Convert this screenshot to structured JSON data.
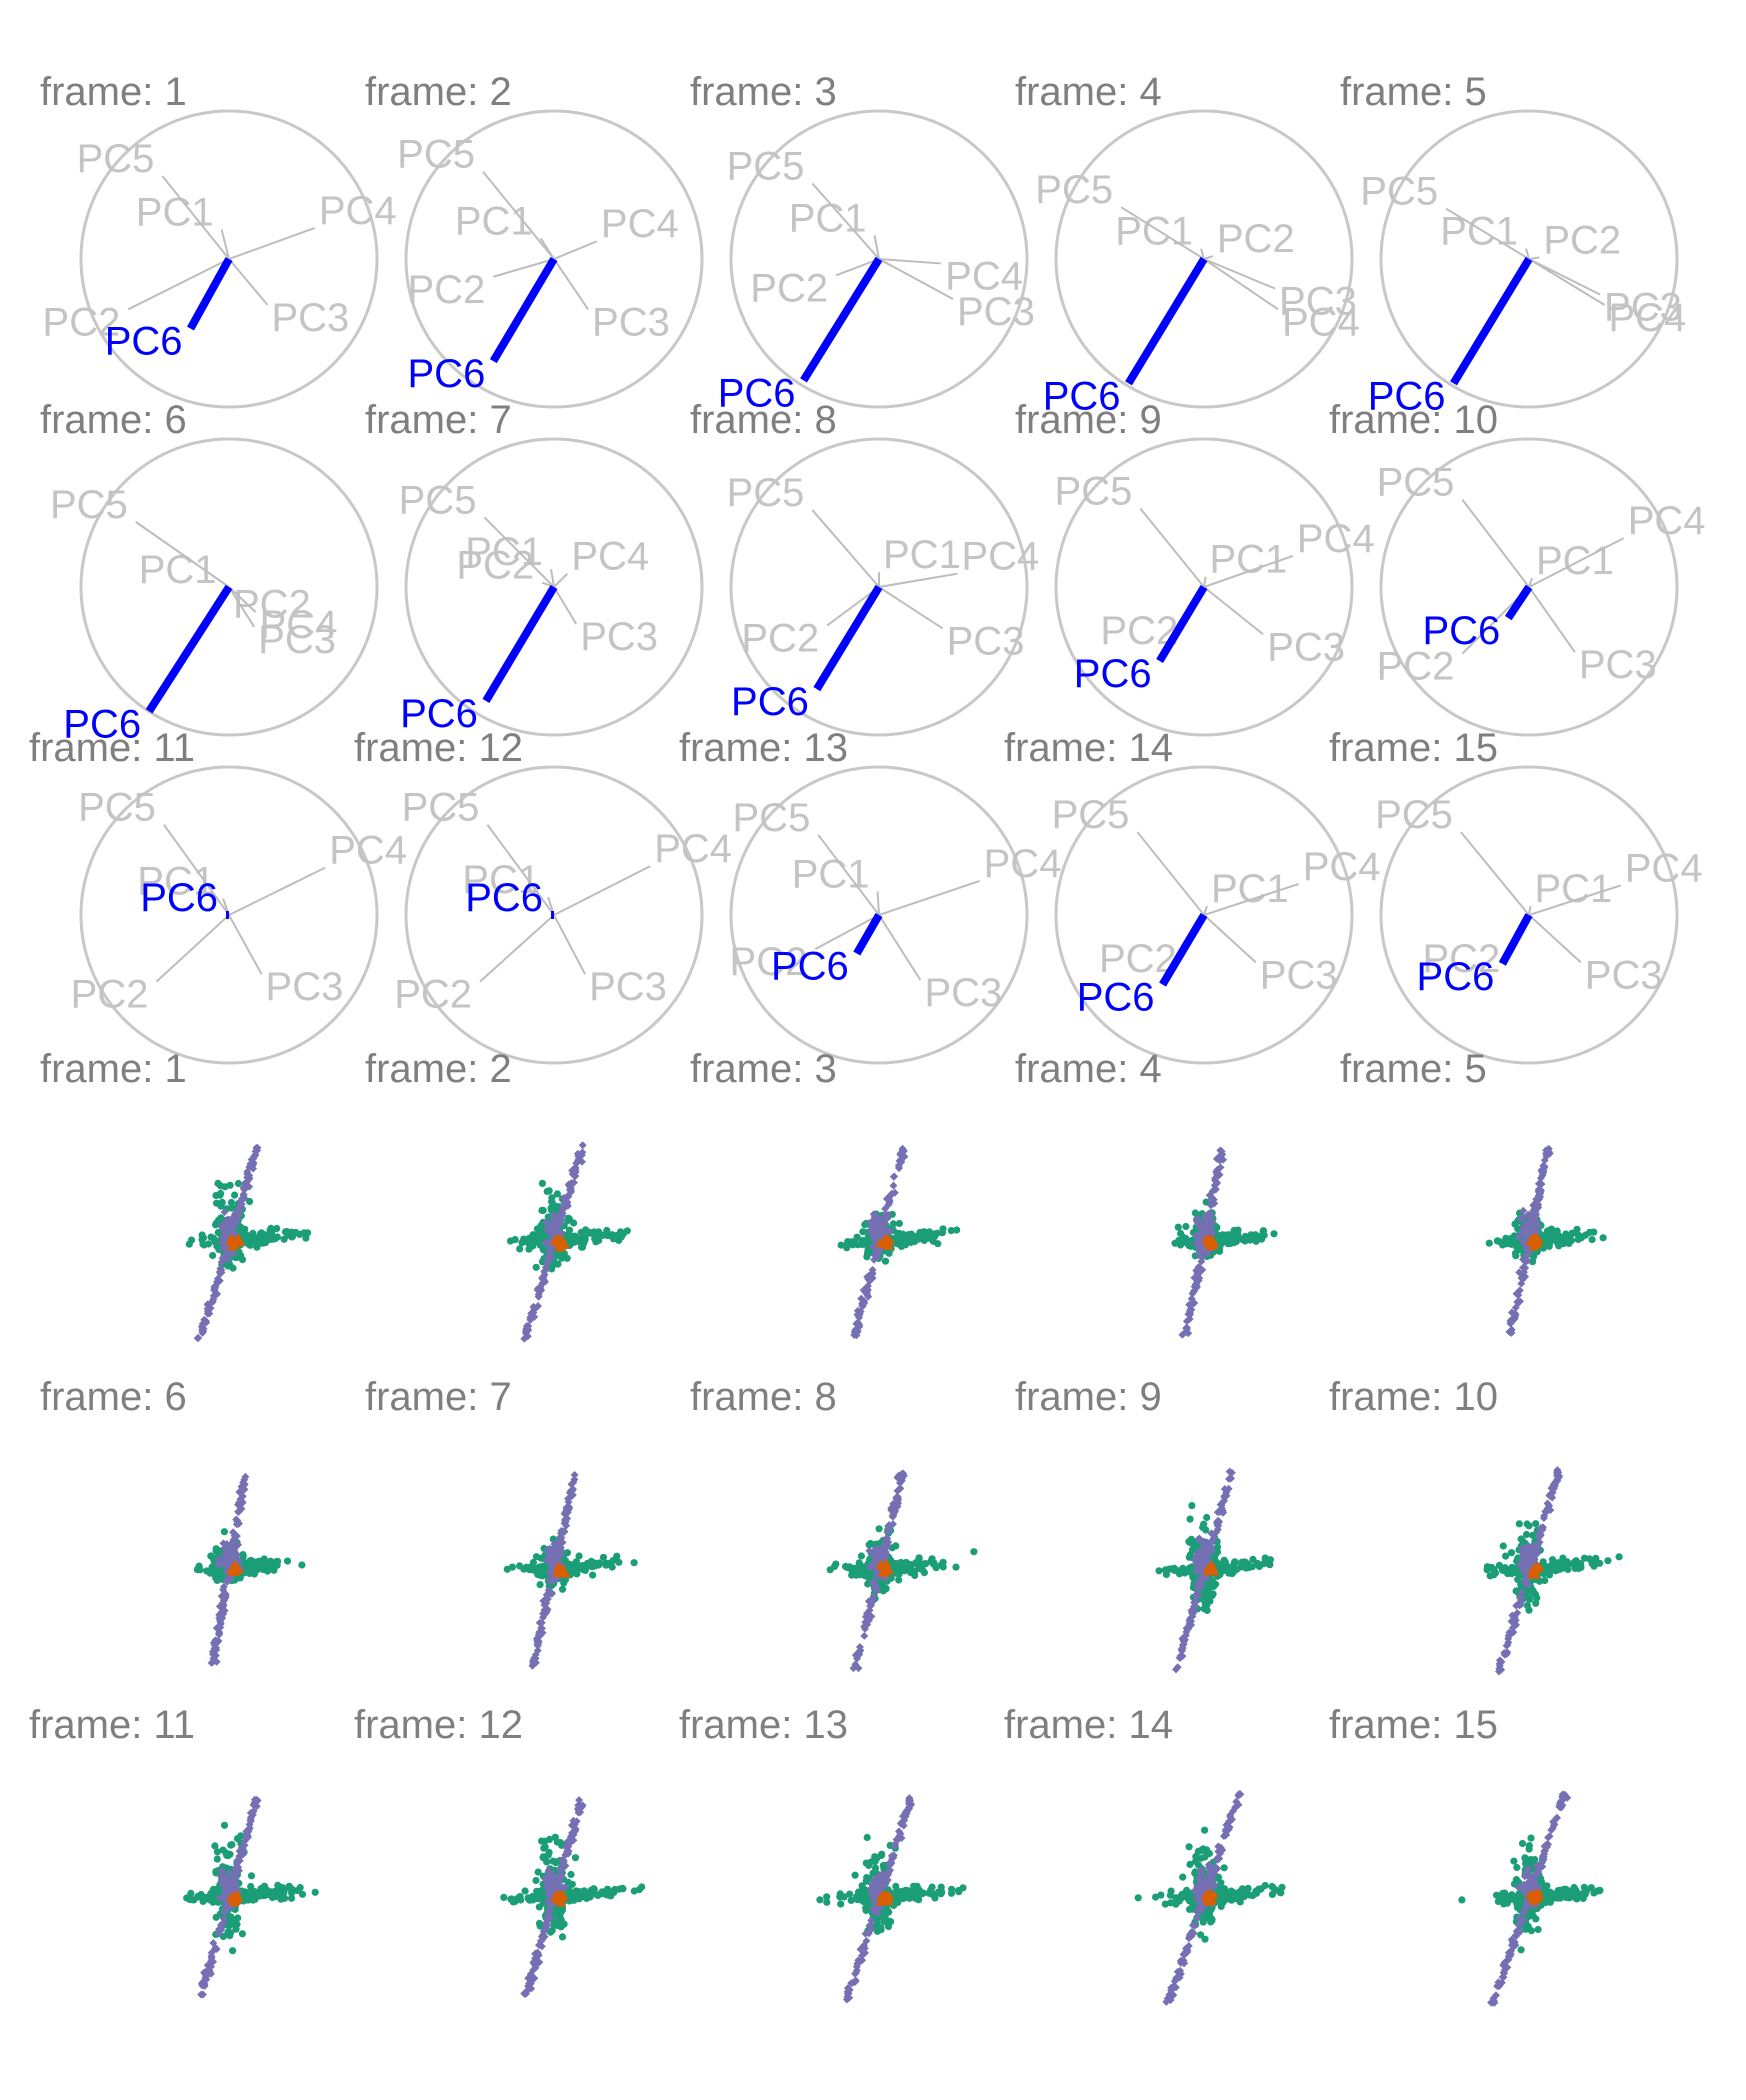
{
  "colors": {
    "frame_label": "#7f7f7f",
    "circle": "#c8c8c8",
    "axis": "#bdbdbd",
    "axis_label": "#c4c4c4",
    "highlight": "#0000ff",
    "groups": [
      "#1b9e77",
      "#d95f02",
      "#7570b3"
    ]
  },
  "chart_data": [
    {
      "type": "tour-axes",
      "description_source": "projection axes of the principal components for each tour frame",
      "frame_prefix": "frame: ",
      "highlight_axis": "PC6",
      "frames": [
        {
          "frame": 1,
          "axes": [
            {
              "label": "PC1",
              "x": -0.05,
              "y": 0.2
            },
            {
              "label": "PC2",
              "x": -0.68,
              "y": -0.34
            },
            {
              "label": "PC3",
              "x": 0.26,
              "y": -0.31
            },
            {
              "label": "PC4",
              "x": 0.58,
              "y": 0.21
            },
            {
              "label": "PC5",
              "x": -0.45,
              "y": 0.56
            },
            {
              "label": "PC6",
              "x": -0.26,
              "y": -0.47
            }
          ]
        },
        {
          "frame": 2,
          "axes": [
            {
              "label": "PC1",
              "x": -0.09,
              "y": 0.14
            },
            {
              "label": "PC2",
              "x": -0.41,
              "y": -0.12
            },
            {
              "label": "PC3",
              "x": 0.23,
              "y": -0.34
            },
            {
              "label": "PC4",
              "x": 0.29,
              "y": 0.12
            },
            {
              "label": "PC5",
              "x": -0.48,
              "y": 0.59
            },
            {
              "label": "PC6",
              "x": -0.41,
              "y": -0.69
            }
          ]
        },
        {
          "frame": 3,
          "axes": [
            {
              "label": "PC1",
              "x": -0.03,
              "y": 0.16
            },
            {
              "label": "PC2",
              "x": -0.29,
              "y": -0.11
            },
            {
              "label": "PC3",
              "x": 0.5,
              "y": -0.27
            },
            {
              "label": "PC4",
              "x": 0.42,
              "y": -0.03
            },
            {
              "label": "PC5",
              "x": -0.45,
              "y": 0.51
            },
            {
              "label": "PC6",
              "x": -0.51,
              "y": -0.82
            }
          ]
        },
        {
          "frame": 4,
          "axes": [
            {
              "label": "PC1",
              "x": -0.02,
              "y": 0.07
            },
            {
              "label": "PC2",
              "x": 0.06,
              "y": 0.02
            },
            {
              "label": "PC3",
              "x": 0.48,
              "y": -0.2
            },
            {
              "label": "PC4",
              "x": 0.5,
              "y": -0.34
            },
            {
              "label": "PC5",
              "x": -0.56,
              "y": 0.35
            },
            {
              "label": "PC6",
              "x": -0.51,
              "y": -0.84
            }
          ]
        },
        {
          "frame": 5,
          "axes": [
            {
              "label": "PC1",
              "x": -0.02,
              "y": 0.07
            },
            {
              "label": "PC2",
              "x": 0.07,
              "y": 0.01
            },
            {
              "label": "PC3",
              "x": 0.48,
              "y": -0.24
            },
            {
              "label": "PC4",
              "x": 0.51,
              "y": -0.31
            },
            {
              "label": "PC5",
              "x": -0.56,
              "y": 0.34
            },
            {
              "label": "PC6",
              "x": -0.51,
              "y": -0.84
            }
          ]
        },
        {
          "frame": 6,
          "axes": [
            {
              "label": "PC1",
              "x": -0.03,
              "y": 0.0
            },
            {
              "label": "PC2",
              "x": 0.0,
              "y": -0.03
            },
            {
              "label": "PC3",
              "x": 0.17,
              "y": -0.27
            },
            {
              "label": "PC4",
              "x": 0.18,
              "y": -0.17
            },
            {
              "label": "PC5",
              "x": -0.63,
              "y": 0.44
            },
            {
              "label": "PC6",
              "x": -0.54,
              "y": -0.84
            }
          ]
        },
        {
          "frame": 7,
          "axes": [
            {
              "label": "PC1",
              "x": -0.02,
              "y": 0.12
            },
            {
              "label": "PC2",
              "x": -0.08,
              "y": 0.03
            },
            {
              "label": "PC3",
              "x": 0.15,
              "y": -0.25
            },
            {
              "label": "PC4",
              "x": 0.09,
              "y": 0.09
            },
            {
              "label": "PC5",
              "x": -0.47,
              "y": 0.47
            },
            {
              "label": "PC6",
              "x": -0.46,
              "y": -0.77
            }
          ]
        },
        {
          "frame": 8,
          "axes": [
            {
              "label": "PC1",
              "x": 0.0,
              "y": 0.1
            },
            {
              "label": "PC2",
              "x": -0.35,
              "y": -0.26
            },
            {
              "label": "PC3",
              "x": 0.43,
              "y": -0.28
            },
            {
              "label": "PC4",
              "x": 0.53,
              "y": 0.09
            },
            {
              "label": "PC5",
              "x": -0.45,
              "y": 0.52
            },
            {
              "label": "PC6",
              "x": -0.42,
              "y": -0.69
            }
          ]
        },
        {
          "frame": 9,
          "axes": [
            {
              "label": "PC1",
              "x": 0.01,
              "y": 0.07
            },
            {
              "label": "PC2",
              "x": -0.12,
              "y": -0.21
            },
            {
              "label": "PC3",
              "x": 0.4,
              "y": -0.32
            },
            {
              "label": "PC4",
              "x": 0.6,
              "y": 0.21
            },
            {
              "label": "PC5",
              "x": -0.43,
              "y": 0.53
            },
            {
              "label": "PC6",
              "x": -0.3,
              "y": -0.5
            }
          ]
        },
        {
          "frame": 10,
          "axes": [
            {
              "label": "PC1",
              "x": 0.02,
              "y": 0.06
            },
            {
              "label": "PC2",
              "x": -0.45,
              "y": -0.45
            },
            {
              "label": "PC3",
              "x": 0.31,
              "y": -0.44
            },
            {
              "label": "PC4",
              "x": 0.64,
              "y": 0.33
            },
            {
              "label": "PC5",
              "x": -0.45,
              "y": 0.59
            },
            {
              "label": "PC6",
              "x": -0.14,
              "y": -0.21
            }
          ]
        },
        {
          "frame": 11,
          "axes": [
            {
              "label": "PC1",
              "x": -0.04,
              "y": 0.11
            },
            {
              "label": "PC2",
              "x": -0.49,
              "y": -0.45
            },
            {
              "label": "PC3",
              "x": 0.22,
              "y": -0.4
            },
            {
              "label": "PC4",
              "x": 0.65,
              "y": 0.32
            },
            {
              "label": "PC5",
              "x": -0.44,
              "y": 0.61
            },
            {
              "label": "PC6",
              "x": -0.02,
              "y": 0.0
            }
          ]
        },
        {
          "frame": 12,
          "axes": [
            {
              "label": "PC1",
              "x": -0.04,
              "y": 0.12
            },
            {
              "label": "PC2",
              "x": -0.5,
              "y": -0.45
            },
            {
              "label": "PC3",
              "x": 0.21,
              "y": -0.4
            },
            {
              "label": "PC4",
              "x": 0.65,
              "y": 0.33
            },
            {
              "label": "PC5",
              "x": -0.45,
              "y": 0.61
            },
            {
              "label": "PC6",
              "x": -0.02,
              "y": 0.0
            }
          ]
        },
        {
          "frame": 13,
          "axes": [
            {
              "label": "PC1",
              "x": -0.01,
              "y": 0.16
            },
            {
              "label": "PC2",
              "x": -0.43,
              "y": -0.23
            },
            {
              "label": "PC3",
              "x": 0.28,
              "y": -0.44
            },
            {
              "label": "PC4",
              "x": 0.68,
              "y": 0.23
            },
            {
              "label": "PC5",
              "x": -0.41,
              "y": 0.54
            },
            {
              "label": "PC6",
              "x": -0.15,
              "y": -0.26
            }
          ]
        },
        {
          "frame": 14,
          "axes": [
            {
              "label": "PC1",
              "x": 0.02,
              "y": 0.06
            },
            {
              "label": "PC2",
              "x": -0.13,
              "y": -0.21
            },
            {
              "label": "PC3",
              "x": 0.35,
              "y": -0.32
            },
            {
              "label": "PC4",
              "x": 0.64,
              "y": 0.21
            },
            {
              "label": "PC5",
              "x": -0.45,
              "y": 0.56
            },
            {
              "label": "PC6",
              "x": -0.28,
              "y": -0.47
            }
          ]
        },
        {
          "frame": 15,
          "axes": [
            {
              "label": "PC1",
              "x": 0.01,
              "y": 0.06
            },
            {
              "label": "PC2",
              "x": -0.14,
              "y": -0.21
            },
            {
              "label": "PC3",
              "x": 0.35,
              "y": -0.32
            },
            {
              "label": "PC4",
              "x": 0.62,
              "y": 0.2
            },
            {
              "label": "PC5",
              "x": -0.46,
              "y": 0.56
            },
            {
              "label": "PC6",
              "x": -0.18,
              "y": -0.33
            }
          ]
        }
      ]
    },
    {
      "type": "scatter",
      "frame_prefix": "frame: ",
      "groups": [
        "1",
        "2",
        "3"
      ],
      "frames": [
        {
          "frame": 1,
          "spread": {
            "green_h": [
              -0.38,
              0.64
            ],
            "green_v": [
              -0.18,
              0.55
            ],
            "purple_tilt": 0.3,
            "purple_len": 0.82
          }
        },
        {
          "frame": 2,
          "spread": {
            "green_h": [
              -0.38,
              0.62
            ],
            "green_v": [
              -0.24,
              0.52
            ],
            "purple_tilt": 0.3,
            "purple_len": 0.82
          }
        },
        {
          "frame": 3,
          "spread": {
            "green_h": [
              -0.32,
              0.58
            ],
            "green_v": [
              -0.14,
              0.28
            ],
            "purple_tilt": 0.26,
            "purple_len": 0.78
          }
        },
        {
          "frame": 4,
          "spread": {
            "green_h": [
              -0.28,
              0.55
            ],
            "green_v": [
              -0.12,
              0.32
            ],
            "purple_tilt": 0.2,
            "purple_len": 0.78
          }
        },
        {
          "frame": 5,
          "spread": {
            "green_h": [
              -0.28,
              0.55
            ],
            "green_v": [
              -0.12,
              0.32
            ],
            "purple_tilt": 0.2,
            "purple_len": 0.78
          }
        },
        {
          "frame": 6,
          "spread": {
            "green_h": [
              -0.3,
              0.55
            ],
            "green_v": [
              -0.1,
              0.3
            ],
            "purple_tilt": 0.17,
            "purple_len": 0.78
          }
        },
        {
          "frame": 7,
          "spread": {
            "green_h": [
              -0.36,
              0.58
            ],
            "green_v": [
              -0.12,
              0.28
            ],
            "purple_tilt": 0.22,
            "purple_len": 0.8
          }
        },
        {
          "frame": 8,
          "spread": {
            "green_h": [
              -0.38,
              0.58
            ],
            "green_v": [
              -0.24,
              0.4
            ],
            "purple_tilt": 0.24,
            "purple_len": 0.82
          }
        },
        {
          "frame": 9,
          "spread": {
            "green_h": [
              -0.38,
              0.6
            ],
            "green_v": [
              -0.3,
              0.5
            ],
            "purple_tilt": 0.28,
            "purple_len": 0.84
          }
        },
        {
          "frame": 10,
          "spread": {
            "green_h": [
              -0.4,
              0.62
            ],
            "green_v": [
              -0.3,
              0.52
            ],
            "purple_tilt": 0.3,
            "purple_len": 0.86
          }
        },
        {
          "frame": 11,
          "spread": {
            "green_h": [
              -0.4,
              0.64
            ],
            "green_v": [
              -0.32,
              0.55
            ],
            "purple_tilt": 0.28,
            "purple_len": 0.82
          }
        },
        {
          "frame": 12,
          "spread": {
            "green_h": [
              -0.4,
              0.64
            ],
            "green_v": [
              -0.32,
              0.55
            ],
            "purple_tilt": 0.28,
            "purple_len": 0.82
          }
        },
        {
          "frame": 13,
          "spread": {
            "green_h": [
              -0.4,
              0.66
            ],
            "green_v": [
              -0.32,
              0.52
            ],
            "purple_tilt": 0.32,
            "purple_len": 0.86
          }
        },
        {
          "frame": 14,
          "spread": {
            "green_h": [
              -0.4,
              0.64
            ],
            "green_v": [
              -0.32,
              0.5
            ],
            "purple_tilt": 0.34,
            "purple_len": 0.88
          }
        },
        {
          "frame": 15,
          "spread": {
            "green_h": [
              -0.4,
              0.64
            ],
            "green_v": [
              -0.32,
              0.52
            ],
            "purple_tilt": 0.34,
            "purple_len": 0.88
          }
        }
      ]
    }
  ]
}
